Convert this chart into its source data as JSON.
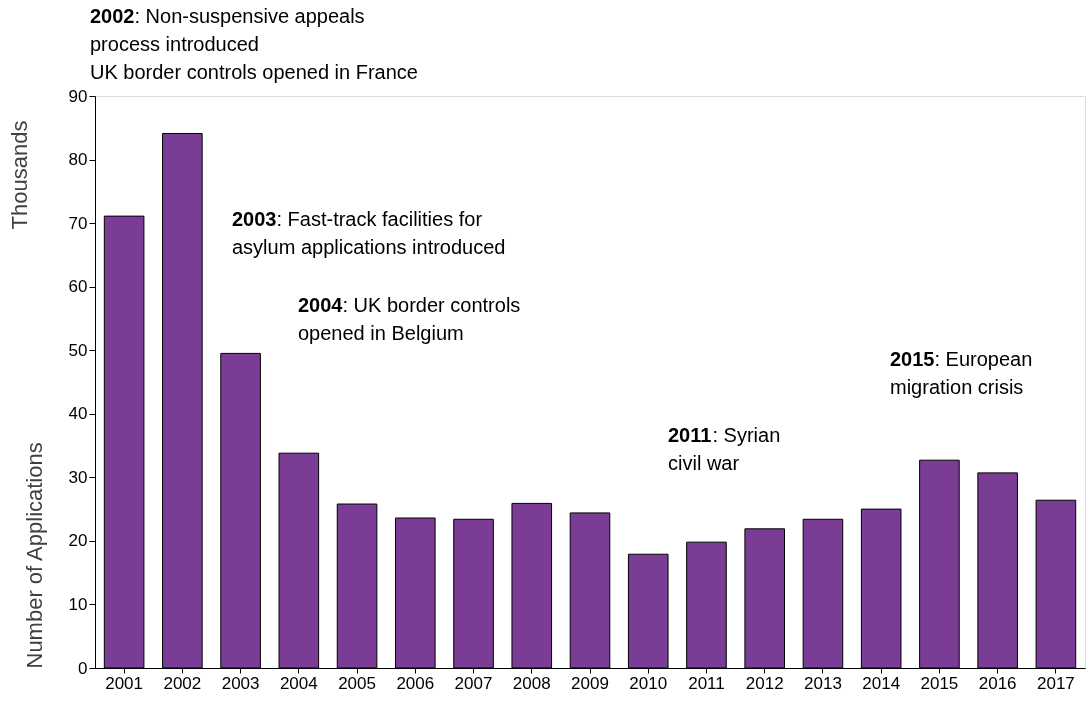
{
  "chart_data": {
    "type": "bar",
    "ylabel": "Number of Applications",
    "categories": [
      "2001",
      "2002",
      "2003",
      "2004",
      "2005",
      "2006",
      "2007",
      "2008",
      "2009",
      "2010",
      "2011",
      "2012",
      "2013",
      "2014",
      "2015",
      "2016",
      "2017"
    ],
    "values": [
      71.1,
      84.1,
      49.5,
      33.8,
      25.8,
      23.6,
      23.4,
      25.9,
      24.4,
      17.9,
      19.8,
      21.9,
      23.4,
      25,
      32.7,
      30.7,
      26.4
    ],
    "color": "#7b3c96",
    "ylim": [
      0,
      90
    ],
    "yticks": [
      0,
      10,
      20,
      30,
      40,
      50,
      60,
      70,
      80,
      90
    ],
    "grid": false,
    "annotations": [
      "Thousands",
      "2002: Non-suspensive appeals process introduced UK border controls opened in France",
      "2003: Fast-track facilities for asylum applications introduced",
      "2004: UK border controls opened in Belgium",
      "2011: Syrian civil war",
      "2015: European migration crisis"
    ]
  }
}
